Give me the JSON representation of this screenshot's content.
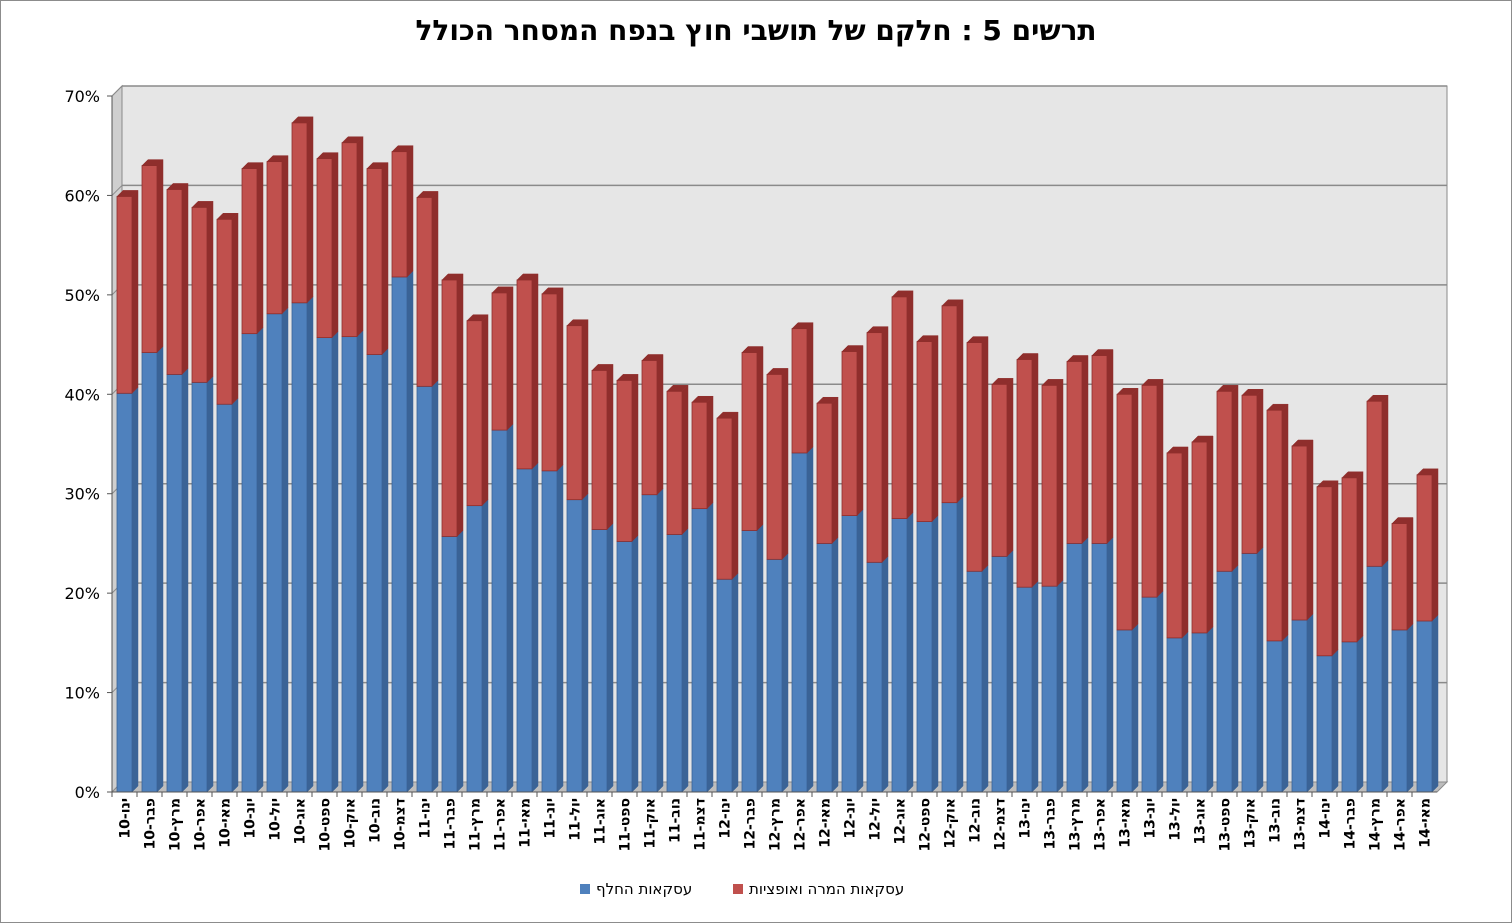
{
  "colors": {
    "swaps": "#4f81bd",
    "swaps_dark": "#3a6396",
    "forwards": "#c0504d",
    "forwards_dark": "#8f2e2c",
    "plot_bg": "#e6e6e6",
    "grid": "#8a8a8a"
  },
  "chart_data": {
    "type": "bar",
    "stacked": true,
    "title": "תרשים 5 : חלקם של תושבי חוץ בנפח המסחר הכולל",
    "ylim": [
      0,
      70
    ],
    "yticks": [
      "0%",
      "10%",
      "20%",
      "30%",
      "40%",
      "50%",
      "60%",
      "70%"
    ],
    "grid": true,
    "legend_position": "bottom",
    "categories": [
      "ינו-10",
      "פבר-10",
      "מרץ-10",
      "אפר-10",
      "מאי-10",
      "יונ-10",
      "יול-10",
      "אוג-10",
      "ספט-10",
      "אוק-10",
      "נוב-10",
      "דצמ-10",
      "ינו-11",
      "פבר-11",
      "מרץ-11",
      "אפר-11",
      "מאי-11",
      "יונ-11",
      "יול-11",
      "אוג-11",
      "ספט-11",
      "אוק-11",
      "נוב-11",
      "דצמ-11",
      "ינו-12",
      "פבר-12",
      "מרץ-12",
      "אפר-12",
      "מאי-12",
      "יונ-12",
      "יול-12",
      "אוג-12",
      "ספט-12",
      "אוק-12",
      "נוב-12",
      "דצמ-12",
      "ינו-13",
      "פבר-13",
      "מרץ-13",
      "אפר-13",
      "מאי-13",
      "יונ-13",
      "יול-13",
      "אוג-13",
      "ספט-13",
      "אוק-13",
      "נוב-13",
      "דצמ-13",
      "ינו-14",
      "פבר-14",
      "מרץ-14",
      "אפר-14",
      "מאי-14"
    ],
    "series": [
      {
        "name": "עסקאות החלף",
        "values": [
          40.1,
          44.2,
          42.0,
          41.2,
          39.0,
          46.1,
          48.1,
          49.2,
          45.7,
          45.8,
          44.0,
          51.8,
          40.8,
          25.7,
          28.8,
          36.4,
          32.5,
          32.3,
          29.4,
          26.4,
          25.2,
          29.9,
          25.9,
          28.5,
          21.4,
          26.3,
          23.4,
          34.1,
          25.0,
          27.8,
          23.1,
          27.5,
          27.2,
          29.1,
          22.2,
          23.7,
          20.6,
          20.7,
          25.0,
          25.0,
          16.3,
          19.6,
          15.5,
          16.0,
          22.2,
          24.0,
          15.2,
          17.3,
          13.7,
          15.1,
          22.7,
          16.3,
          17.2
        ]
      },
      {
        "name": "עסקאות המרה ואופציות",
        "values": [
          19.8,
          18.8,
          18.6,
          17.6,
          18.6,
          16.6,
          15.3,
          18.1,
          18.0,
          19.5,
          18.7,
          12.6,
          19.0,
          25.8,
          18.6,
          13.8,
          19.0,
          17.8,
          17.5,
          16.0,
          16.2,
          13.5,
          14.4,
          10.7,
          16.2,
          17.9,
          18.6,
          12.5,
          14.1,
          16.5,
          23.1,
          22.3,
          18.1,
          19.8,
          23.0,
          17.3,
          22.9,
          20.2,
          18.3,
          18.9,
          23.7,
          21.3,
          18.6,
          19.2,
          18.1,
          15.9,
          23.2,
          17.5,
          17.0,
          16.5,
          16.6,
          10.7,
          14.7
        ]
      }
    ]
  }
}
